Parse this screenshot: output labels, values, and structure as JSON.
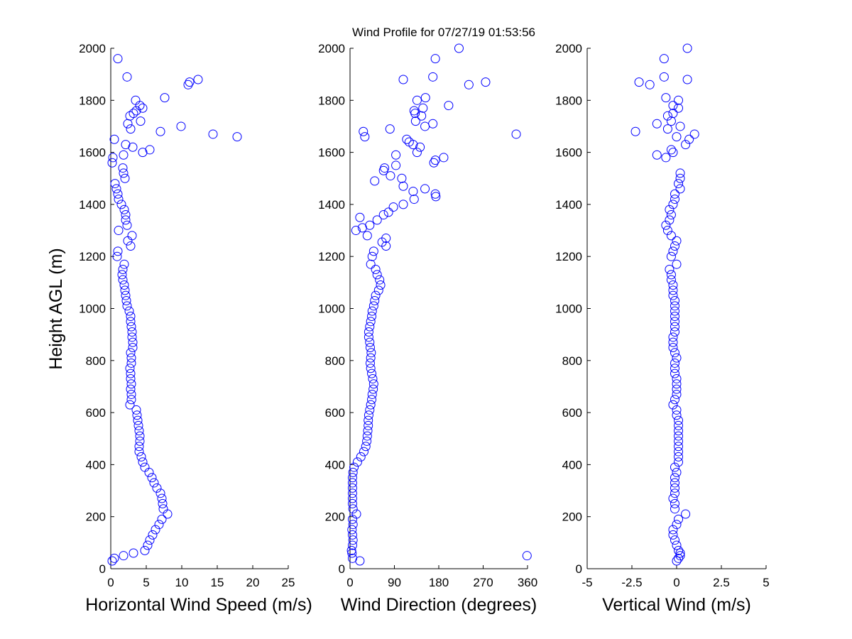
{
  "title": "Wind Profile for  07/27/19 01:53:56",
  "chart_data": [
    {
      "type": "scatter",
      "xlabel": "Horizontal Wind Speed (m/s)",
      "ylabel": "Height AGL (m)",
      "xlim": [
        0,
        25
      ],
      "ylim": [
        0,
        2000
      ],
      "xticks": [
        "0",
        "5",
        "10",
        "15",
        "20",
        "25"
      ],
      "yticks": [
        "0",
        "200",
        "400",
        "600",
        "800",
        "1000",
        "1200",
        "1400",
        "1600",
        "1800",
        "2000"
      ],
      "marker_color": "#0000ff",
      "points": [
        [
          0.2,
          30
        ],
        [
          0.5,
          40
        ],
        [
          1.8,
          50
        ],
        [
          3.2,
          60
        ],
        [
          4.8,
          70
        ],
        [
          5.2,
          90
        ],
        [
          5.5,
          110
        ],
        [
          5.9,
          130
        ],
        [
          6.3,
          150
        ],
        [
          6.8,
          170
        ],
        [
          7.2,
          190
        ],
        [
          8.0,
          210
        ],
        [
          7.4,
          230
        ],
        [
          7.3,
          250
        ],
        [
          7.2,
          270
        ],
        [
          7.0,
          290
        ],
        [
          6.5,
          310
        ],
        [
          6.1,
          330
        ],
        [
          5.8,
          350
        ],
        [
          5.4,
          370
        ],
        [
          4.8,
          390
        ],
        [
          4.5,
          410
        ],
        [
          4.3,
          430
        ],
        [
          4.0,
          450
        ],
        [
          4.0,
          470
        ],
        [
          4.1,
          490
        ],
        [
          4.1,
          510
        ],
        [
          4.0,
          530
        ],
        [
          3.9,
          550
        ],
        [
          3.8,
          570
        ],
        [
          3.7,
          590
        ],
        [
          3.6,
          610
        ],
        [
          2.7,
          630
        ],
        [
          2.9,
          650
        ],
        [
          2.9,
          670
        ],
        [
          2.8,
          690
        ],
        [
          2.9,
          710
        ],
        [
          2.8,
          730
        ],
        [
          2.8,
          750
        ],
        [
          2.7,
          770
        ],
        [
          2.9,
          790
        ],
        [
          2.9,
          810
        ],
        [
          2.8,
          830
        ],
        [
          3.1,
          850
        ],
        [
          3.1,
          870
        ],
        [
          3.0,
          890
        ],
        [
          3.0,
          910
        ],
        [
          2.9,
          930
        ],
        [
          2.8,
          950
        ],
        [
          2.8,
          970
        ],
        [
          2.6,
          990
        ],
        [
          2.3,
          1010
        ],
        [
          2.2,
          1030
        ],
        [
          2.1,
          1050
        ],
        [
          2.0,
          1070
        ],
        [
          1.9,
          1090
        ],
        [
          1.7,
          1110
        ],
        [
          1.6,
          1130
        ],
        [
          1.7,
          1150
        ],
        [
          1.9,
          1170
        ],
        [
          0.9,
          1200
        ],
        [
          1.0,
          1220
        ],
        [
          2.8,
          1240
        ],
        [
          2.4,
          1260
        ],
        [
          3.0,
          1280
        ],
        [
          1.1,
          1300
        ],
        [
          2.3,
          1320
        ],
        [
          2.1,
          1340
        ],
        [
          2.1,
          1360
        ],
        [
          1.9,
          1380
        ],
        [
          1.5,
          1400
        ],
        [
          1.1,
          1420
        ],
        [
          1.0,
          1440
        ],
        [
          0.8,
          1460
        ],
        [
          0.6,
          1480
        ],
        [
          2.0,
          1500
        ],
        [
          1.8,
          1520
        ],
        [
          1.7,
          1540
        ],
        [
          0.2,
          1560
        ],
        [
          0.3,
          1580
        ],
        [
          1.8,
          1590
        ],
        [
          4.5,
          1600
        ],
        [
          5.5,
          1610
        ],
        [
          3.1,
          1620
        ],
        [
          2.1,
          1630
        ],
        [
          0.5,
          1650
        ],
        [
          17.8,
          1660
        ],
        [
          14.4,
          1670
        ],
        [
          7.0,
          1680
        ],
        [
          2.8,
          1690
        ],
        [
          9.9,
          1700
        ],
        [
          2.4,
          1710
        ],
        [
          4.2,
          1720
        ],
        [
          2.7,
          1740
        ],
        [
          3.2,
          1750
        ],
        [
          3.6,
          1760
        ],
        [
          4.5,
          1770
        ],
        [
          4.1,
          1780
        ],
        [
          3.5,
          1800
        ],
        [
          7.6,
          1810
        ],
        [
          10.9,
          1860
        ],
        [
          11.1,
          1870
        ],
        [
          12.3,
          1880
        ],
        [
          2.3,
          1890
        ],
        [
          1.0,
          1960
        ]
      ]
    },
    {
      "type": "scatter",
      "xlabel": "Wind Direction (degrees)",
      "xlim": [
        0,
        360
      ],
      "ylim": [
        0,
        2000
      ],
      "xticks": [
        "0",
        "90",
        "180",
        "270",
        "360"
      ],
      "yticks": [
        "0",
        "200",
        "400",
        "600",
        "800",
        "1000",
        "1200",
        "1400",
        "1600",
        "1800",
        "2000"
      ],
      "marker_color": "#0000ff",
      "points": [
        [
          20,
          30
        ],
        [
          5,
          40
        ],
        [
          359,
          50
        ],
        [
          4,
          60
        ],
        [
          3,
          70
        ],
        [
          5,
          90
        ],
        [
          6,
          110
        ],
        [
          5,
          130
        ],
        [
          4,
          150
        ],
        [
          6,
          170
        ],
        [
          5,
          190
        ],
        [
          13,
          210
        ],
        [
          6,
          230
        ],
        [
          5,
          250
        ],
        [
          5,
          270
        ],
        [
          5,
          290
        ],
        [
          5,
          310
        ],
        [
          5,
          330
        ],
        [
          5,
          350
        ],
        [
          6,
          370
        ],
        [
          8,
          390
        ],
        [
          15,
          410
        ],
        [
          22,
          430
        ],
        [
          28,
          450
        ],
        [
          32,
          470
        ],
        [
          34,
          490
        ],
        [
          35,
          510
        ],
        [
          36,
          530
        ],
        [
          37,
          550
        ],
        [
          37,
          570
        ],
        [
          38,
          590
        ],
        [
          40,
          610
        ],
        [
          42,
          630
        ],
        [
          44,
          650
        ],
        [
          45,
          670
        ],
        [
          47,
          690
        ],
        [
          48,
          710
        ],
        [
          46,
          730
        ],
        [
          44,
          750
        ],
        [
          42,
          770
        ],
        [
          41,
          790
        ],
        [
          42,
          810
        ],
        [
          43,
          830
        ],
        [
          41,
          850
        ],
        [
          40,
          870
        ],
        [
          38,
          890
        ],
        [
          38,
          910
        ],
        [
          40,
          930
        ],
        [
          42,
          950
        ],
        [
          44,
          970
        ],
        [
          45,
          990
        ],
        [
          48,
          1010
        ],
        [
          50,
          1030
        ],
        [
          52,
          1050
        ],
        [
          58,
          1070
        ],
        [
          62,
          1090
        ],
        [
          60,
          1110
        ],
        [
          55,
          1130
        ],
        [
          52,
          1150
        ],
        [
          42,
          1170
        ],
        [
          45,
          1200
        ],
        [
          48,
          1220
        ],
        [
          73,
          1240
        ],
        [
          65,
          1255
        ],
        [
          73,
          1270
        ],
        [
          35,
          1280
        ],
        [
          12,
          1300
        ],
        [
          25,
          1310
        ],
        [
          40,
          1320
        ],
        [
          55,
          1340
        ],
        [
          20,
          1350
        ],
        [
          68,
          1360
        ],
        [
          78,
          1370
        ],
        [
          88,
          1390
        ],
        [
          108,
          1400
        ],
        [
          130,
          1420
        ],
        [
          174,
          1430
        ],
        [
          173,
          1440
        ],
        [
          128,
          1450
        ],
        [
          152,
          1460
        ],
        [
          108,
          1470
        ],
        [
          50,
          1490
        ],
        [
          105,
          1500
        ],
        [
          82,
          1510
        ],
        [
          68,
          1530
        ],
        [
          70,
          1540
        ],
        [
          93,
          1550
        ],
        [
          170,
          1560
        ],
        [
          173,
          1570
        ],
        [
          190,
          1580
        ],
        [
          93,
          1590
        ],
        [
          136,
          1600
        ],
        [
          142,
          1620
        ],
        [
          128,
          1630
        ],
        [
          120,
          1640
        ],
        [
          115,
          1650
        ],
        [
          30,
          1660
        ],
        [
          337,
          1670
        ],
        [
          27,
          1680
        ],
        [
          81,
          1690
        ],
        [
          152,
          1700
        ],
        [
          168,
          1710
        ],
        [
          133,
          1720
        ],
        [
          145,
          1740
        ],
        [
          132,
          1750
        ],
        [
          130,
          1760
        ],
        [
          148,
          1770
        ],
        [
          200,
          1780
        ],
        [
          136,
          1800
        ],
        [
          153,
          1810
        ],
        [
          241,
          1860
        ],
        [
          275,
          1870
        ],
        [
          108,
          1880
        ],
        [
          168,
          1890
        ],
        [
          173,
          1960
        ],
        [
          221,
          2000
        ]
      ]
    },
    {
      "type": "scatter",
      "xlabel": "Vertical Wind (m/s)",
      "xlim": [
        -5,
        5
      ],
      "ylim": [
        0,
        2000
      ],
      "xticks": [
        "-5",
        "-2.5",
        "0",
        "2.5",
        "5"
      ],
      "yticks": [
        "0",
        "200",
        "400",
        "600",
        "800",
        "1000",
        "1200",
        "1400",
        "1600",
        "1800",
        "2000"
      ],
      "marker_color": "#0000ff",
      "points": [
        [
          0.0,
          30
        ],
        [
          0.1,
          40
        ],
        [
          0.2,
          50
        ],
        [
          0.2,
          60
        ],
        [
          0.1,
          70
        ],
        [
          0.0,
          90
        ],
        [
          -0.1,
          110
        ],
        [
          -0.2,
          130
        ],
        [
          -0.2,
          150
        ],
        [
          0.0,
          170
        ],
        [
          0.1,
          190
        ],
        [
          0.5,
          210
        ],
        [
          -0.1,
          230
        ],
        [
          -0.1,
          250
        ],
        [
          -0.2,
          270
        ],
        [
          -0.1,
          290
        ],
        [
          -0.1,
          310
        ],
        [
          -0.1,
          330
        ],
        [
          -0.1,
          350
        ],
        [
          0.0,
          370
        ],
        [
          -0.1,
          390
        ],
        [
          0.1,
          410
        ],
        [
          0.1,
          430
        ],
        [
          0.1,
          450
        ],
        [
          0.1,
          470
        ],
        [
          0.1,
          490
        ],
        [
          0.1,
          510
        ],
        [
          0.1,
          530
        ],
        [
          0.1,
          550
        ],
        [
          0.1,
          570
        ],
        [
          0.0,
          590
        ],
        [
          0.0,
          610
        ],
        [
          -0.2,
          630
        ],
        [
          -0.1,
          650
        ],
        [
          0.0,
          670
        ],
        [
          0.0,
          690
        ],
        [
          0.0,
          710
        ],
        [
          0.0,
          730
        ],
        [
          -0.1,
          750
        ],
        [
          -0.1,
          770
        ],
        [
          -0.1,
          790
        ],
        [
          0.0,
          810
        ],
        [
          -0.1,
          830
        ],
        [
          -0.2,
          850
        ],
        [
          -0.2,
          870
        ],
        [
          -0.2,
          890
        ],
        [
          -0.1,
          910
        ],
        [
          -0.1,
          930
        ],
        [
          -0.1,
          950
        ],
        [
          -0.1,
          970
        ],
        [
          -0.1,
          990
        ],
        [
          -0.1,
          1010
        ],
        [
          -0.1,
          1030
        ],
        [
          -0.2,
          1050
        ],
        [
          -0.2,
          1070
        ],
        [
          -0.2,
          1090
        ],
        [
          -0.3,
          1110
        ],
        [
          -0.3,
          1130
        ],
        [
          -0.4,
          1150
        ],
        [
          0.0,
          1170
        ],
        [
          -0.3,
          1200
        ],
        [
          -0.2,
          1220
        ],
        [
          -0.1,
          1240
        ],
        [
          0.0,
          1260
        ],
        [
          -0.3,
          1280
        ],
        [
          -0.5,
          1300
        ],
        [
          -0.6,
          1320
        ],
        [
          -0.4,
          1340
        ],
        [
          -0.3,
          1360
        ],
        [
          -0.4,
          1380
        ],
        [
          -0.2,
          1400
        ],
        [
          -0.1,
          1420
        ],
        [
          -0.1,
          1440
        ],
        [
          0.2,
          1460
        ],
        [
          0.1,
          1480
        ],
        [
          0.2,
          1500
        ],
        [
          0.2,
          1520
        ],
        [
          -0.6,
          1580
        ],
        [
          -1.1,
          1590
        ],
        [
          -0.2,
          1600
        ],
        [
          -0.3,
          1610
        ],
        [
          0.5,
          1630
        ],
        [
          0.7,
          1650
        ],
        [
          0.0,
          1660
        ],
        [
          1.0,
          1670
        ],
        [
          -2.3,
          1680
        ],
        [
          -0.5,
          1690
        ],
        [
          0.2,
          1700
        ],
        [
          -1.1,
          1710
        ],
        [
          -0.3,
          1720
        ],
        [
          -0.5,
          1740
        ],
        [
          -0.2,
          1750
        ],
        [
          0.1,
          1770
        ],
        [
          -0.2,
          1780
        ],
        [
          0.1,
          1800
        ],
        [
          -0.6,
          1810
        ],
        [
          -1.5,
          1860
        ],
        [
          -2.1,
          1870
        ],
        [
          0.6,
          1880
        ],
        [
          -0.7,
          1890
        ],
        [
          -0.7,
          1960
        ],
        [
          0.6,
          2000
        ]
      ]
    }
  ]
}
